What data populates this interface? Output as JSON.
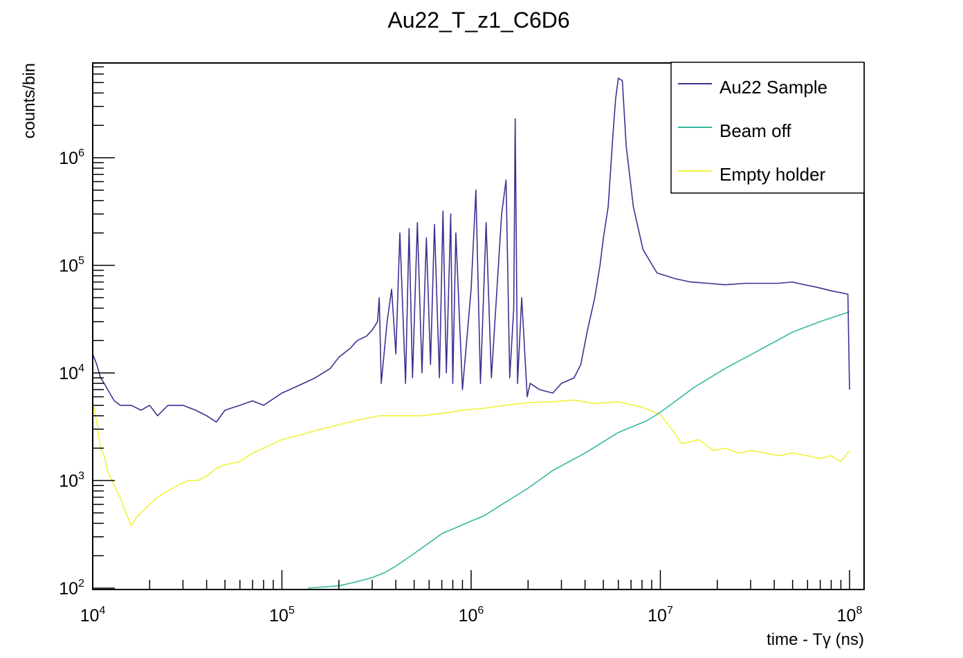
{
  "chart_data": {
    "type": "line",
    "title": "Au22_T_z1_C6D6",
    "xlabel": "time - Tγ (ns)",
    "ylabel": "counts/bin",
    "xscale": "log",
    "yscale": "log",
    "xlim": [
      10000,
      119000000
    ],
    "ylim": [
      98,
      7600000
    ],
    "grid": false,
    "legend_position": "top-right",
    "x_ticks": [
      {
        "base": "10",
        "exp": "4",
        "value": 10000
      },
      {
        "base": "10",
        "exp": "5",
        "value": 100000
      },
      {
        "base": "10",
        "exp": "6",
        "value": 1000000
      },
      {
        "base": "10",
        "exp": "7",
        "value": 10000000
      },
      {
        "base": "10",
        "exp": "8",
        "value": 100000000
      }
    ],
    "y_ticks": [
      {
        "base": "10",
        "exp": "2",
        "value": 100
      },
      {
        "base": "10",
        "exp": "3",
        "value": 1000
      },
      {
        "base": "10",
        "exp": "4",
        "value": 10000
      },
      {
        "base": "10",
        "exp": "5",
        "value": 100000
      },
      {
        "base": "10",
        "exp": "6",
        "value": 1000000
      }
    ],
    "series": [
      {
        "name": "Au22 Sample",
        "color": "#3b3190",
        "x": [
          10000,
          10500,
          11000,
          11500,
          12000,
          13000,
          14000,
          16000,
          18000,
          20000,
          22000,
          25000,
          30000,
          35000,
          40000,
          45000,
          50000,
          60000,
          70000,
          80000,
          100000,
          120000,
          150000,
          180000,
          200000,
          230000,
          250000,
          280000,
          300000,
          320000,
          327000,
          335000,
          360000,
          380000,
          400000,
          420000,
          450000,
          470000,
          490000,
          520000,
          550000,
          580000,
          610000,
          640000,
          680000,
          710000,
          740000,
          780000,
          800000,
          830000,
          900000,
          1000000,
          1060000,
          1120000,
          1200000,
          1280000,
          1350000,
          1450000,
          1530000,
          1600000,
          1680000,
          1710000,
          1760000,
          1850000,
          1980000,
          2050000,
          2300000,
          2700000,
          3000000,
          3500000,
          3800000,
          4100000,
          4500000,
          4800000,
          5000000,
          5300000,
          5600000,
          5800000,
          6000000,
          6300000,
          6600000,
          7200000,
          8100000,
          9600000,
          12000000,
          14500000,
          18000000,
          22000000,
          28000000,
          34000000,
          42000000,
          50000000,
          58000000,
          66000000,
          80000000,
          98000000,
          100000000
        ],
        "y": [
          15000,
          12000,
          9000,
          8000,
          7000,
          5500,
          5000,
          5000,
          4500,
          5000,
          4000,
          5000,
          5000,
          4500,
          4000,
          3500,
          4500,
          5000,
          5500,
          5000,
          6500,
          7500,
          9000,
          11000,
          14000,
          17000,
          20000,
          22000,
          25000,
          30000,
          50000,
          8000,
          30000,
          60000,
          15000,
          200000,
          8000,
          220000,
          9000,
          250000,
          10000,
          180000,
          12000,
          240000,
          9000,
          320000,
          10000,
          300000,
          8000,
          200000,
          7000,
          60000,
          500000,
          8000,
          250000,
          9000,
          40000,
          300000,
          620000,
          9000,
          40000,
          2300000,
          8000,
          50000,
          6000,
          8000,
          7000,
          6500,
          8000,
          9000,
          12000,
          24000,
          50000,
          100000,
          180000,
          350000,
          1500000,
          3500000,
          5500000,
          5200000,
          1300000,
          350000,
          140000,
          85000,
          75000,
          70000,
          68000,
          66000,
          68000,
          68000,
          68000,
          70000,
          66000,
          63000,
          58000,
          54000,
          7000
        ]
      },
      {
        "name": "Beam off",
        "color": "#35b8a0",
        "x": [
          137000,
          200000,
          250000,
          300000,
          350000,
          400000,
          500000,
          700000,
          1000000,
          1170000,
          1500000,
          2000000,
          2700000,
          4000000,
          6000000,
          8500000,
          10000000,
          15000000,
          22000000,
          34000000,
          50000000,
          70000000,
          100000000
        ],
        "y": [
          100,
          105,
          115,
          125,
          140,
          160,
          210,
          320,
          420,
          470,
          620,
          850,
          1240,
          1800,
          2800,
          3600,
          4300,
          7300,
          11000,
          16600,
          24000,
          30000,
          37000
        ]
      },
      {
        "name": "Empty holder",
        "color": "#f2f23a",
        "x": [
          10000,
          10500,
          11000,
          11500,
          12000,
          13000,
          14000,
          15000,
          16000,
          17000,
          18000,
          20000,
          22000,
          25000,
          28000,
          32000,
          36000,
          40000,
          45000,
          50000,
          60000,
          70000,
          80000,
          100000,
          130000,
          160000,
          200000,
          260000,
          330000,
          420000,
          550000,
          700000,
          900000,
          1170000,
          1500000,
          2000000,
          2700000,
          3500000,
          4500000,
          6000000,
          8000000,
          10000000,
          11500000,
          13000000,
          16000000,
          19000000,
          22000000,
          26000000,
          30000000,
          36000000,
          42000000,
          50000000,
          60000000,
          70000000,
          80000000,
          90000000,
          100000000
        ],
        "y": [
          5400,
          3500,
          2000,
          1700,
          1200,
          900,
          690,
          500,
          380,
          450,
          500,
          600,
          700,
          800,
          900,
          1000,
          1000,
          1100,
          1300,
          1400,
          1500,
          1800,
          2000,
          2400,
          2700,
          3000,
          3300,
          3700,
          4000,
          4000,
          4000,
          4200,
          4500,
          4700,
          5000,
          5300,
          5400,
          5600,
          5200,
          5400,
          4800,
          4100,
          3000,
          2200,
          2400,
          1900,
          2000,
          1800,
          1900,
          1800,
          1700,
          1800,
          1700,
          1600,
          1700,
          1500,
          1900
        ]
      }
    ]
  }
}
